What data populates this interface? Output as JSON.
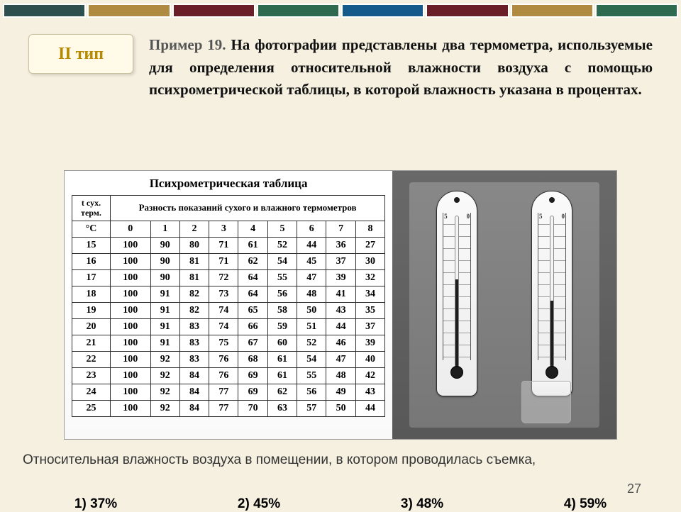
{
  "stripe_colors": [
    "#2f4f4f",
    "#b08a40",
    "#6a1f28",
    "#2d6a4f",
    "#155a8a",
    "#6a1f28",
    "#b08a40",
    "#2d6a4f"
  ],
  "badge": "II тип",
  "lead": "Пример 19.",
  "problem": "На фотографии представлены два термометра, используемые для определения относительной влажности воздуха с помощью психрометрической таблицы, в которой влажность указана в процентах.",
  "table_title": "Психрометрическая таблица",
  "row_head_top": "t сух. терм.",
  "spanner": "Разность показаний сухого и влажного термометров",
  "col_unit": "°C",
  "diff_cols": [
    "0",
    "1",
    "2",
    "3",
    "4",
    "5",
    "6",
    "7",
    "8"
  ],
  "rows": [
    {
      "t": "15",
      "v": [
        "100",
        "90",
        "80",
        "71",
        "61",
        "52",
        "44",
        "36",
        "27"
      ]
    },
    {
      "t": "16",
      "v": [
        "100",
        "90",
        "81",
        "71",
        "62",
        "54",
        "45",
        "37",
        "30"
      ]
    },
    {
      "t": "17",
      "v": [
        "100",
        "90",
        "81",
        "72",
        "64",
        "55",
        "47",
        "39",
        "32"
      ]
    },
    {
      "t": "18",
      "v": [
        "100",
        "91",
        "82",
        "73",
        "64",
        "56",
        "48",
        "41",
        "34"
      ]
    },
    {
      "t": "19",
      "v": [
        "100",
        "91",
        "82",
        "74",
        "65",
        "58",
        "50",
        "43",
        "35"
      ]
    },
    {
      "t": "20",
      "v": [
        "100",
        "91",
        "83",
        "74",
        "66",
        "59",
        "51",
        "44",
        "37"
      ]
    },
    {
      "t": "21",
      "v": [
        "100",
        "91",
        "83",
        "75",
        "67",
        "60",
        "52",
        "46",
        "39"
      ]
    },
    {
      "t": "22",
      "v": [
        "100",
        "92",
        "83",
        "76",
        "68",
        "61",
        "54",
        "47",
        "40"
      ]
    },
    {
      "t": "23",
      "v": [
        "100",
        "92",
        "84",
        "76",
        "69",
        "61",
        "55",
        "48",
        "42"
      ]
    },
    {
      "t": "24",
      "v": [
        "100",
        "92",
        "84",
        "77",
        "69",
        "62",
        "56",
        "49",
        "43"
      ]
    },
    {
      "t": "25",
      "v": [
        "100",
        "92",
        "84",
        "77",
        "70",
        "63",
        "57",
        "50",
        "44"
      ]
    }
  ],
  "therm_top_label": "5",
  "therm_mid_label": "0",
  "mercury_height_dry": "58%",
  "mercury_height_wet": "44%",
  "question": "Относительная влажность воздуха в помещении, в котором проводилась съемка,",
  "page": "27",
  "answers": [
    {
      "n": "1)",
      "v": "37%"
    },
    {
      "n": "2)",
      "v": "45%"
    },
    {
      "n": "3)",
      "v": "48%"
    },
    {
      "n": "4)",
      "v": "59%"
    }
  ]
}
